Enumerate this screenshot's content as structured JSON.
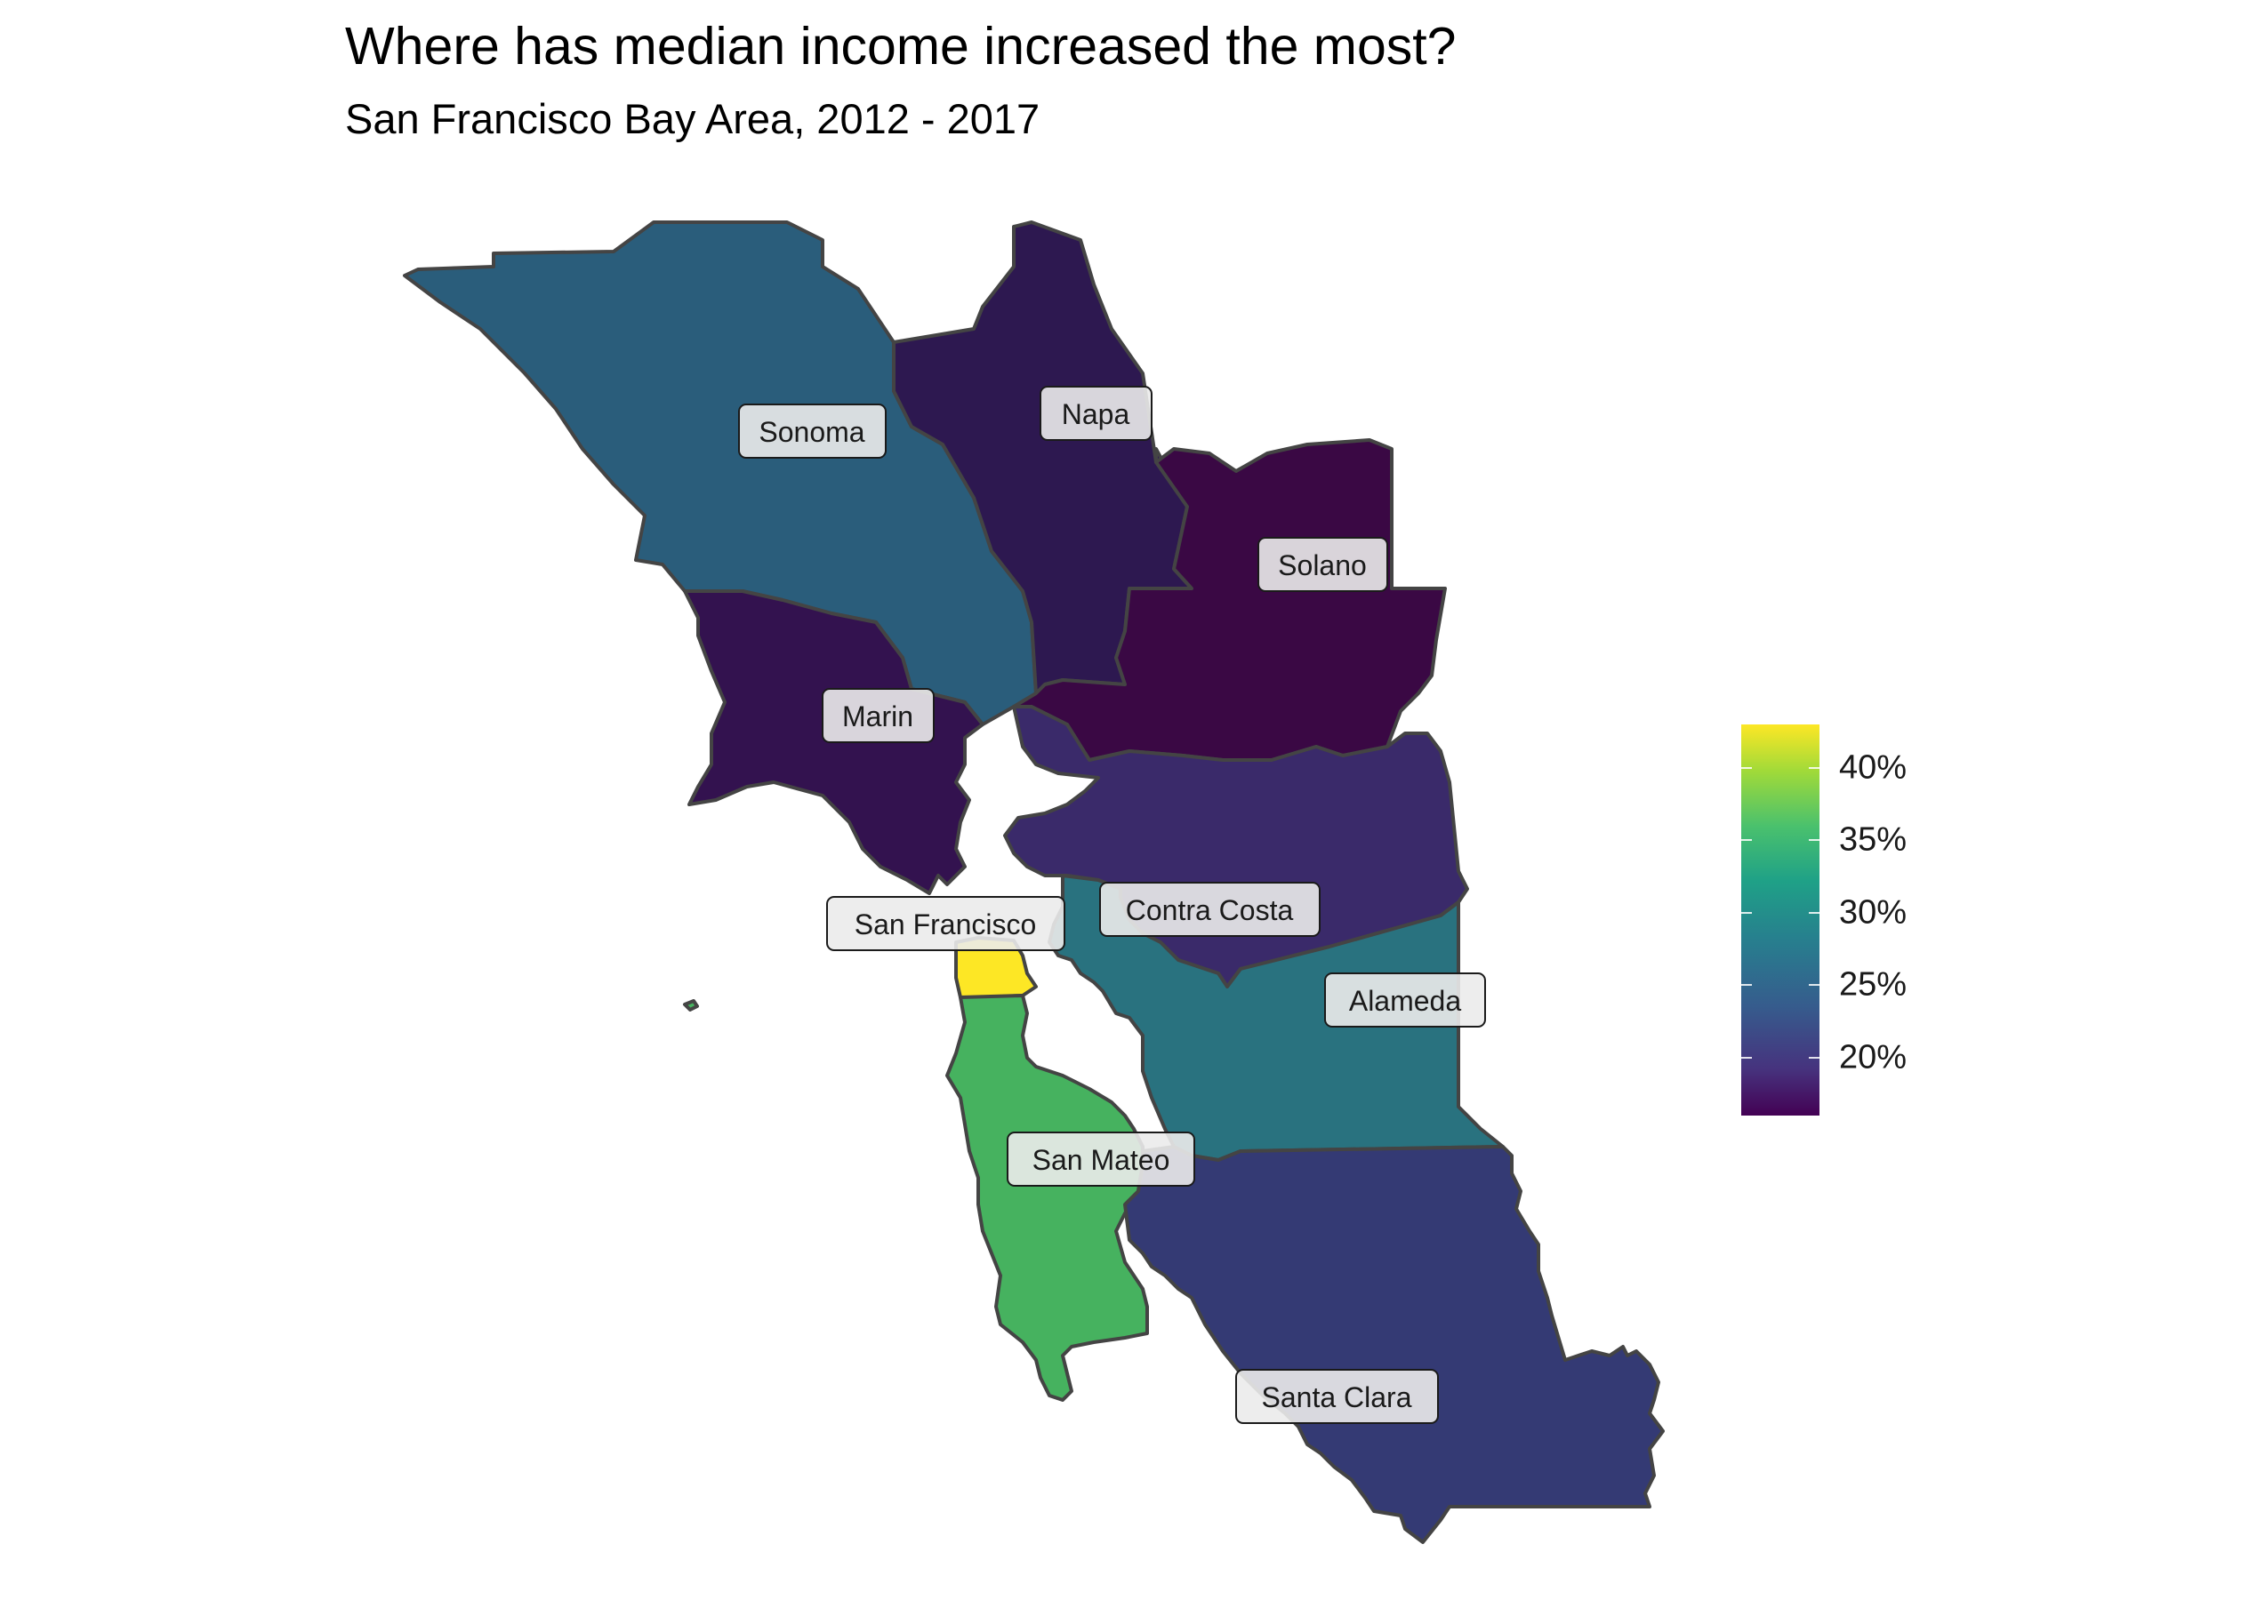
{
  "title": "Where has median income increased the most?",
  "subtitle": "San Francisco Bay Area, 2012 - 2017",
  "legend": {
    "min": 16,
    "max": 43,
    "ticks": [
      {
        "value": 20,
        "label": "20%"
      },
      {
        "value": 25,
        "label": "25%"
      },
      {
        "value": 30,
        "label": "30%"
      },
      {
        "value": 35,
        "label": "35%"
      },
      {
        "value": 40,
        "label": "40%"
      }
    ],
    "palette": "viridis"
  },
  "counties": [
    {
      "name": "Sonoma",
      "fill": "#2a5d7b"
    },
    {
      "name": "Napa",
      "fill": "#2d1850"
    },
    {
      "name": "Solano",
      "fill": "#3a0844"
    },
    {
      "name": "Marin",
      "fill": "#33124f"
    },
    {
      "name": "Contra Costa",
      "fill": "#3a2a6a"
    },
    {
      "name": "Alameda",
      "fill": "#29727f"
    },
    {
      "name": "San Francisco",
      "fill": "#fde725"
    },
    {
      "name": "San Mateo",
      "fill": "#46b25f"
    },
    {
      "name": "Santa Clara",
      "fill": "#343a74"
    }
  ]
}
